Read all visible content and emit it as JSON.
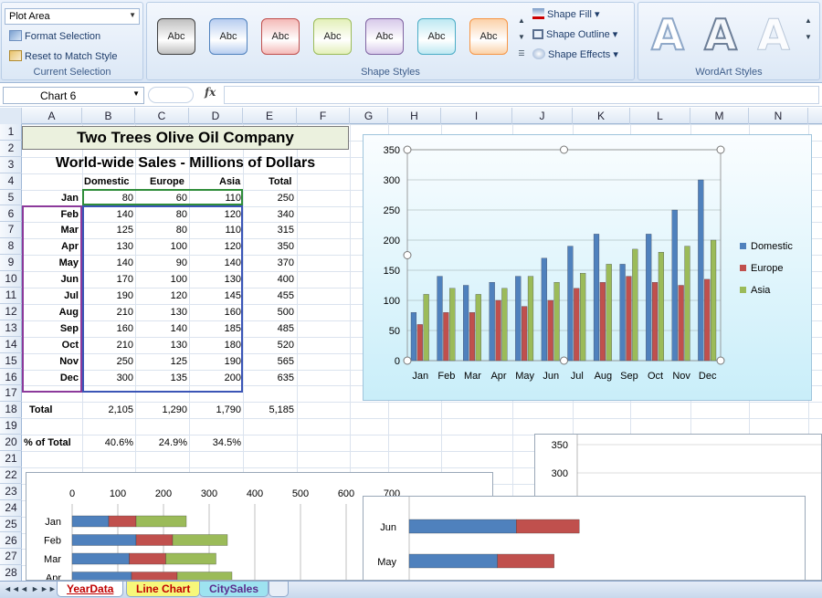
{
  "ribbon": {
    "current_selection": {
      "element_combo": "Plot Area",
      "format_selection": "Format Selection",
      "reset_style": "Reset to Match Style",
      "label": "Current Selection"
    },
    "shape_styles": {
      "swatches": [
        {
          "label": "Abc",
          "color": "#bfbfbf",
          "border": "#404040"
        },
        {
          "label": "Abc",
          "color": "#b7cdf0",
          "border": "#4f81bd"
        },
        {
          "label": "Abc",
          "color": "#f4b9b7",
          "border": "#c0504d"
        },
        {
          "label": "Abc",
          "color": "#e3f0b8",
          "border": "#9bbb59"
        },
        {
          "label": "Abc",
          "color": "#d7c9ea",
          "border": "#8064a2"
        },
        {
          "label": "Abc",
          "color": "#bde8f2",
          "border": "#4bacc6"
        },
        {
          "label": "Abc",
          "color": "#fbd1a8",
          "border": "#f79646"
        }
      ],
      "shape_fill": "Shape Fill",
      "shape_outline": "Shape Outline",
      "shape_effects": "Shape Effects",
      "label": "Shape Styles"
    },
    "wordart": {
      "sample": "A",
      "label": "WordArt Styles"
    }
  },
  "formula_bar": {
    "name_box": "Chart 6",
    "fx": "fx",
    "formula": ""
  },
  "columns": [
    "A",
    "B",
    "C",
    "D",
    "E",
    "F",
    "G",
    "H",
    "I",
    "J",
    "K",
    "L",
    "M",
    "N"
  ],
  "rows": [
    "1",
    "2",
    "3",
    "4",
    "5",
    "6",
    "7",
    "8",
    "9",
    "10",
    "11",
    "12",
    "13",
    "14",
    "15",
    "16",
    "17",
    "18",
    "19",
    "20",
    "21",
    "22",
    "23",
    "24",
    "25",
    "26",
    "27",
    "28"
  ],
  "sheet": {
    "title": "Two Trees Olive Oil Company",
    "subtitle": "World-wide Sales - Millions of Dollars",
    "headers": [
      "Domestic",
      "Europe",
      "Asia",
      "Total"
    ],
    "table": [
      {
        "month": "Jan",
        "domestic": "80",
        "europe": "60",
        "asia": "110",
        "total": "250"
      },
      {
        "month": "Feb",
        "domestic": "140",
        "europe": "80",
        "asia": "120",
        "total": "340"
      },
      {
        "month": "Mar",
        "domestic": "125",
        "europe": "80",
        "asia": "110",
        "total": "315"
      },
      {
        "month": "Apr",
        "domestic": "130",
        "europe": "100",
        "asia": "120",
        "total": "350"
      },
      {
        "month": "May",
        "domestic": "140",
        "europe": "90",
        "asia": "140",
        "total": "370"
      },
      {
        "month": "Jun",
        "domestic": "170",
        "europe": "100",
        "asia": "130",
        "total": "400"
      },
      {
        "month": "Jul",
        "domestic": "190",
        "europe": "120",
        "asia": "145",
        "total": "455"
      },
      {
        "month": "Aug",
        "domestic": "210",
        "europe": "130",
        "asia": "160",
        "total": "500"
      },
      {
        "month": "Sep",
        "domestic": "160",
        "europe": "140",
        "asia": "185",
        "total": "485"
      },
      {
        "month": "Oct",
        "domestic": "210",
        "europe": "130",
        "asia": "180",
        "total": "520"
      },
      {
        "month": "Nov",
        "domestic": "250",
        "europe": "125",
        "asia": "190",
        "total": "565"
      },
      {
        "month": "Dec",
        "domestic": "300",
        "europe": "135",
        "asia": "200",
        "total": "635"
      }
    ],
    "total_row": {
      "label": "Total",
      "domestic": "2,105",
      "europe": "1,290",
      "asia": "1,790",
      "total": "5,185"
    },
    "pct_row": {
      "label": "% of Total",
      "domestic": "40.6%",
      "europe": "24.9%",
      "asia": "34.5%"
    }
  },
  "chart_data": [
    {
      "type": "bar",
      "categories": [
        "Jan",
        "Feb",
        "Mar",
        "Apr",
        "May",
        "Jun",
        "Jul",
        "Aug",
        "Sep",
        "Oct",
        "Nov",
        "Dec"
      ],
      "series": [
        {
          "name": "Domestic",
          "values": [
            80,
            140,
            125,
            130,
            140,
            170,
            190,
            210,
            160,
            210,
            250,
            300
          ],
          "color": "#4f81bd"
        },
        {
          "name": "Europe",
          "values": [
            60,
            80,
            80,
            100,
            90,
            100,
            120,
            130,
            140,
            130,
            125,
            135
          ],
          "color": "#c0504d"
        },
        {
          "name": "Asia",
          "values": [
            110,
            120,
            110,
            120,
            140,
            130,
            145,
            160,
            185,
            180,
            190,
            200
          ],
          "color": "#9bbb59"
        }
      ],
      "yticks": [
        "0",
        "50",
        "100",
        "150",
        "200",
        "250",
        "300",
        "350"
      ],
      "ylim": [
        0,
        350
      ],
      "legend": "right",
      "grid": true
    },
    {
      "type": "bar",
      "orientation": "horizontal",
      "stacked": true,
      "categories": [
        "Jan",
        "Feb",
        "Mar",
        "Apr"
      ],
      "series": [
        {
          "name": "Domestic",
          "values": [
            80,
            140,
            125,
            130
          ]
        },
        {
          "name": "Europe",
          "values": [
            60,
            80,
            80,
            100
          ]
        },
        {
          "name": "Asia",
          "values": [
            110,
            120,
            110,
            120
          ]
        }
      ],
      "xticks": [
        "0",
        "100",
        "200",
        "300",
        "400",
        "500",
        "600",
        "700"
      ],
      "xlim": [
        0,
        700
      ]
    },
    {
      "type": "bar",
      "orientation": "horizontal",
      "stacked": true,
      "categories": [
        "Jun",
        "May"
      ],
      "series": [
        {
          "name": "Domestic",
          "values": [
            170,
            140
          ]
        },
        {
          "name": "Europe",
          "values": [
            100,
            90
          ]
        }
      ]
    },
    {
      "type": "line",
      "yticks": [
        "350",
        "300"
      ]
    }
  ],
  "tabs": [
    "YearData",
    "Line Chart",
    "CitySales"
  ],
  "tab_nav": [
    "◄◄",
    "◄",
    "►",
    "►►"
  ]
}
